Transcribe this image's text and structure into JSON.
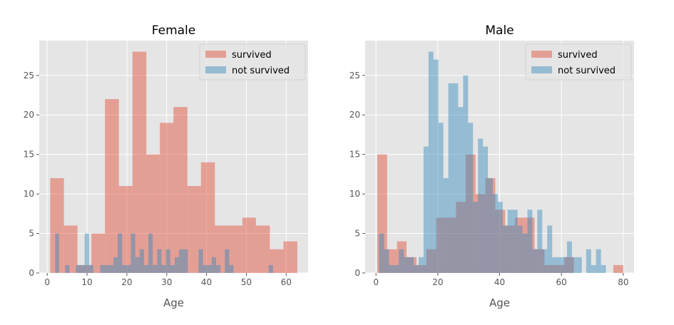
{
  "chart_data": [
    {
      "type": "bar",
      "title": "Female",
      "xlabel": "Age",
      "ylabel": "",
      "xlim": [
        -2,
        65.5
      ],
      "ylim": [
        0,
        29.4
      ],
      "xticks": [
        0,
        10,
        20,
        30,
        40,
        50,
        60
      ],
      "yticks": [
        0,
        5,
        10,
        15,
        20,
        25
      ],
      "grid": true,
      "legend_position": "top-right",
      "series": [
        {
          "name": "survived",
          "color": "#E24A33",
          "opacity": 0.45,
          "bins": [
            [
              0.75,
              4.2,
              12
            ],
            [
              4.2,
              7.6,
              6
            ],
            [
              7.6,
              11.1,
              1
            ],
            [
              11.1,
              14.5,
              5
            ],
            [
              14.5,
              18.0,
              22
            ],
            [
              18.0,
              21.4,
              11
            ],
            [
              21.4,
              24.9,
              28
            ],
            [
              24.9,
              28.3,
              15
            ],
            [
              28.3,
              31.7,
              19
            ],
            [
              31.7,
              35.2,
              21
            ],
            [
              35.2,
              38.6,
              11
            ],
            [
              38.6,
              42.1,
              14
            ],
            [
              42.1,
              45.5,
              6
            ],
            [
              45.5,
              49.0,
              6
            ],
            [
              49.0,
              52.4,
              7
            ],
            [
              52.4,
              55.9,
              6
            ],
            [
              55.9,
              59.3,
              3
            ],
            [
              59.3,
              62.8,
              4
            ]
          ]
        },
        {
          "name": "not survived",
          "color": "#348ABD",
          "opacity": 0.45,
          "bins": [
            [
              2.0,
              3.0,
              5
            ],
            [
              4.5,
              5.6,
              1
            ],
            [
              7.2,
              8.3,
              1
            ],
            [
              8.3,
              9.4,
              1
            ],
            [
              9.4,
              10.5,
              5
            ],
            [
              10.5,
              11.6,
              1
            ],
            [
              13.3,
              14.4,
              1
            ],
            [
              14.4,
              15.5,
              1
            ],
            [
              15.5,
              16.6,
              1
            ],
            [
              16.6,
              17.7,
              2
            ],
            [
              17.7,
              18.8,
              5
            ],
            [
              18.8,
              19.9,
              1
            ],
            [
              19.9,
              21.0,
              1
            ],
            [
              21.0,
              22.1,
              5
            ],
            [
              22.1,
              23.2,
              2
            ],
            [
              23.2,
              24.3,
              3
            ],
            [
              24.3,
              25.4,
              1
            ],
            [
              25.4,
              26.5,
              5
            ],
            [
              26.5,
              27.6,
              1
            ],
            [
              27.6,
              28.7,
              3
            ],
            [
              28.7,
              29.8,
              1
            ],
            [
              29.8,
              30.9,
              3
            ],
            [
              30.9,
              32.0,
              1
            ],
            [
              32.0,
              33.1,
              2
            ],
            [
              33.1,
              34.2,
              3
            ],
            [
              34.2,
              35.3,
              3
            ],
            [
              38.0,
              39.1,
              3
            ],
            [
              39.1,
              40.2,
              1
            ],
            [
              40.2,
              41.3,
              1
            ],
            [
              41.3,
              42.4,
              2
            ],
            [
              42.4,
              43.5,
              1
            ],
            [
              44.6,
              45.7,
              3
            ],
            [
              45.7,
              46.8,
              1
            ],
            [
              55.6,
              56.7,
              1
            ]
          ]
        }
      ]
    },
    {
      "type": "bar",
      "title": "Male",
      "xlabel": "Age",
      "ylabel": "",
      "xlim": [
        -3.5,
        83.5
      ],
      "ylim": [
        0,
        29.4
      ],
      "xticks": [
        0,
        20,
        40,
        60,
        80
      ],
      "yticks": [
        0,
        5,
        10,
        15,
        20,
        25
      ],
      "grid": true,
      "legend_position": "top-right",
      "series": [
        {
          "name": "survived",
          "color": "#E24A33",
          "opacity": 0.45,
          "bins": [
            [
              0.42,
              3.6,
              15
            ],
            [
              3.6,
              6.8,
              3
            ],
            [
              6.8,
              9.9,
              4
            ],
            [
              9.9,
              13.1,
              2
            ],
            [
              13.1,
              16.3,
              1
            ],
            [
              16.3,
              19.5,
              3
            ],
            [
              19.5,
              22.7,
              7
            ],
            [
              22.7,
              25.9,
              7
            ],
            [
              25.9,
              29.0,
              9
            ],
            [
              29.0,
              32.2,
              15
            ],
            [
              32.2,
              35.4,
              10
            ],
            [
              35.4,
              38.6,
              12
            ],
            [
              38.6,
              41.8,
              8
            ],
            [
              41.8,
              45.0,
              6
            ],
            [
              45.0,
              48.1,
              7
            ],
            [
              48.1,
              51.3,
              7
            ],
            [
              51.3,
              54.5,
              3
            ],
            [
              54.5,
              57.7,
              1
            ],
            [
              57.7,
              60.9,
              1
            ],
            [
              60.9,
              64.0,
              2
            ],
            [
              73.6,
              76.8,
              0
            ],
            [
              76.8,
              80.0,
              1
            ]
          ]
        },
        {
          "name": "not survived",
          "color": "#348ABD",
          "opacity": 0.45,
          "bins": [
            [
              1.0,
              2.6,
              5
            ],
            [
              2.6,
              4.2,
              3
            ],
            [
              4.2,
              5.8,
              1
            ],
            [
              5.8,
              7.4,
              1
            ],
            [
              7.4,
              9.0,
              3
            ],
            [
              9.0,
              10.6,
              2
            ],
            [
              10.6,
              12.2,
              2
            ],
            [
              12.2,
              13.8,
              1
            ],
            [
              13.8,
              15.4,
              2
            ],
            [
              15.4,
              17.0,
              16
            ],
            [
              17.0,
              18.6,
              28
            ],
            [
              18.6,
              20.2,
              27
            ],
            [
              20.2,
              21.8,
              19
            ],
            [
              21.8,
              23.4,
              12
            ],
            [
              23.4,
              25.0,
              24
            ],
            [
              25.0,
              26.6,
              24
            ],
            [
              26.6,
              28.2,
              21
            ],
            [
              28.2,
              29.8,
              25
            ],
            [
              29.8,
              31.4,
              19
            ],
            [
              31.4,
              33.0,
              9
            ],
            [
              33.0,
              34.6,
              17
            ],
            [
              34.6,
              36.2,
              16
            ],
            [
              36.2,
              37.8,
              12
            ],
            [
              37.8,
              39.4,
              10
            ],
            [
              39.4,
              41.0,
              9
            ],
            [
              41.0,
              42.6,
              6
            ],
            [
              42.6,
              44.2,
              8
            ],
            [
              44.2,
              45.8,
              8
            ],
            [
              45.8,
              47.4,
              6
            ],
            [
              47.4,
              49.0,
              5
            ],
            [
              49.0,
              50.6,
              8
            ],
            [
              50.6,
              52.2,
              3
            ],
            [
              52.2,
              53.8,
              8
            ],
            [
              53.8,
              55.4,
              3
            ],
            [
              55.4,
              57.0,
              6
            ],
            [
              57.0,
              58.6,
              2
            ],
            [
              58.6,
              60.2,
              2
            ],
            [
              60.2,
              61.8,
              2
            ],
            [
              61.8,
              63.4,
              4
            ],
            [
              63.4,
              65.0,
              2
            ],
            [
              65.0,
              66.6,
              2
            ],
            [
              68.0,
              69.6,
              3
            ],
            [
              69.6,
              71.2,
              1
            ],
            [
              71.2,
              72.8,
              3
            ],
            [
              72.8,
              74.4,
              1
            ]
          ]
        }
      ]
    }
  ]
}
